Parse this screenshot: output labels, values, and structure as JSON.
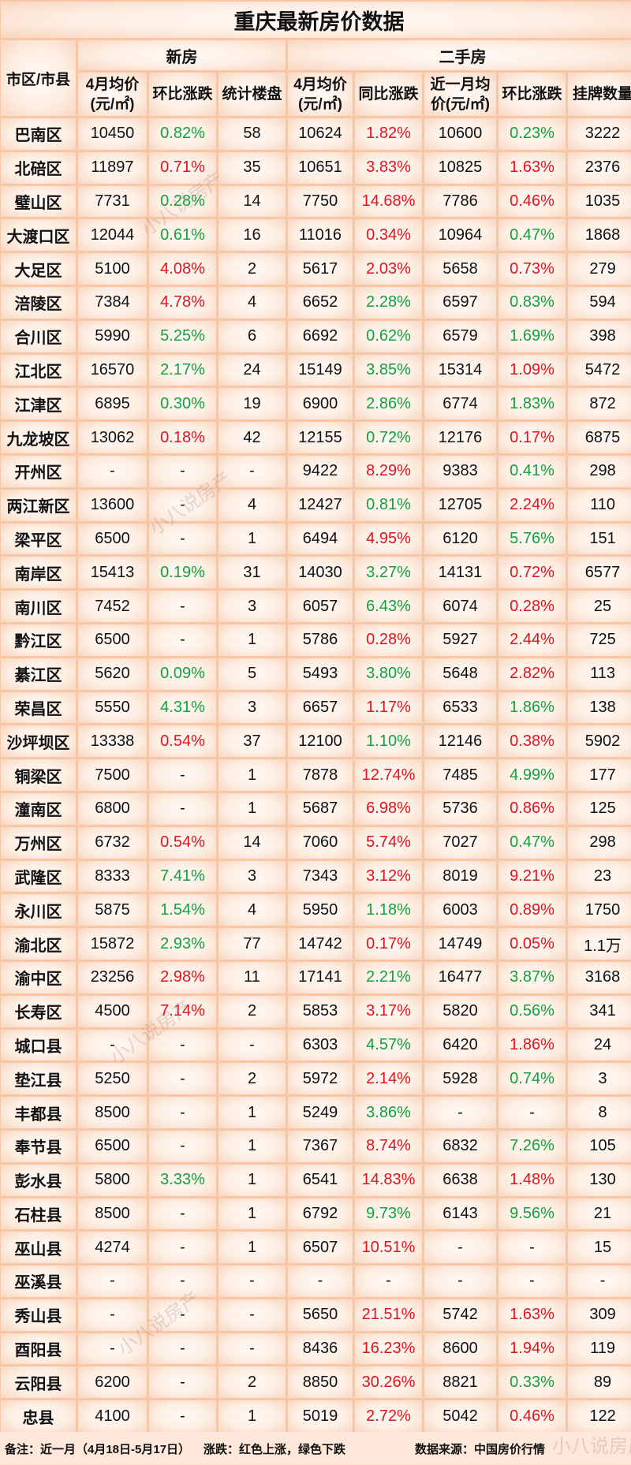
{
  "title": "重庆最新房价数据",
  "headers": {
    "city": "市区/市县",
    "new_group": "新房",
    "used_group": "二手房",
    "new_price": "4月均价(元/㎡)",
    "new_mom": "环比涨跌",
    "new_count": "统计楼盘",
    "used_price": "4月均价(元/㎡)",
    "used_yoy": "同比涨跌",
    "used_recent": "近一月均价(元/㎡)",
    "used_mom": "环比涨跌",
    "listings": "挂牌数量"
  },
  "colors": {
    "up": "#e0141e",
    "down": "#14a03c"
  },
  "rows": [
    [
      "巴南区",
      "10450",
      "0.82%",
      "down",
      "58",
      "10624",
      "1.82%",
      "up",
      "10600",
      "0.23%",
      "down",
      "3222"
    ],
    [
      "北碚区",
      "11897",
      "0.71%",
      "up",
      "35",
      "10651",
      "3.83%",
      "up",
      "10825",
      "1.63%",
      "up",
      "2376"
    ],
    [
      "璧山区",
      "7731",
      "0.28%",
      "down",
      "14",
      "7750",
      "14.68%",
      "up",
      "7786",
      "0.46%",
      "up",
      "1035"
    ],
    [
      "大渡口区",
      "12044",
      "0.61%",
      "down",
      "16",
      "11016",
      "0.34%",
      "up",
      "10964",
      "0.47%",
      "down",
      "1868"
    ],
    [
      "大足区",
      "5100",
      "4.08%",
      "up",
      "2",
      "5617",
      "2.03%",
      "up",
      "5658",
      "0.73%",
      "up",
      "279"
    ],
    [
      "涪陵区",
      "7384",
      "4.78%",
      "up",
      "4",
      "6652",
      "2.28%",
      "down",
      "6597",
      "0.83%",
      "down",
      "594"
    ],
    [
      "合川区",
      "5990",
      "5.25%",
      "down",
      "6",
      "6692",
      "0.62%",
      "down",
      "6579",
      "1.69%",
      "down",
      "398"
    ],
    [
      "江北区",
      "16570",
      "2.17%",
      "down",
      "24",
      "15149",
      "3.85%",
      "down",
      "15314",
      "1.09%",
      "up",
      "5472"
    ],
    [
      "江津区",
      "6895",
      "0.30%",
      "down",
      "19",
      "6900",
      "2.86%",
      "down",
      "6774",
      "1.83%",
      "down",
      "872"
    ],
    [
      "九龙坡区",
      "13062",
      "0.18%",
      "up",
      "42",
      "12155",
      "0.72%",
      "down",
      "12176",
      "0.17%",
      "up",
      "6875"
    ],
    [
      "开州区",
      "-",
      "-",
      "",
      "-",
      "9422",
      "8.29%",
      "up",
      "9383",
      "0.41%",
      "down",
      "298"
    ],
    [
      "两江新区",
      "13600",
      "-",
      "",
      "4",
      "12427",
      "0.81%",
      "down",
      "12705",
      "2.24%",
      "up",
      "110"
    ],
    [
      "梁平区",
      "6500",
      "-",
      "",
      "1",
      "6494",
      "4.95%",
      "up",
      "6120",
      "5.76%",
      "down",
      "151"
    ],
    [
      "南岸区",
      "15413",
      "0.19%",
      "down",
      "31",
      "14030",
      "3.27%",
      "down",
      "14131",
      "0.72%",
      "up",
      "6577"
    ],
    [
      "南川区",
      "7452",
      "-",
      "",
      "3",
      "6057",
      "6.43%",
      "down",
      "6074",
      "0.28%",
      "up",
      "25"
    ],
    [
      "黔江区",
      "6500",
      "-",
      "",
      "1",
      "5786",
      "0.28%",
      "up",
      "5927",
      "2.44%",
      "up",
      "725"
    ],
    [
      "綦江区",
      "5620",
      "0.09%",
      "down",
      "5",
      "5493",
      "3.80%",
      "down",
      "5648",
      "2.82%",
      "up",
      "113"
    ],
    [
      "荣昌区",
      "5550",
      "4.31%",
      "down",
      "3",
      "6657",
      "1.17%",
      "up",
      "6533",
      "1.86%",
      "down",
      "138"
    ],
    [
      "沙坪坝区",
      "13338",
      "0.54%",
      "up",
      "37",
      "12100",
      "1.10%",
      "down",
      "12146",
      "0.38%",
      "up",
      "5902"
    ],
    [
      "铜梁区",
      "7500",
      "-",
      "",
      "1",
      "7878",
      "12.74%",
      "up",
      "7485",
      "4.99%",
      "down",
      "177"
    ],
    [
      "潼南区",
      "6800",
      "-",
      "",
      "1",
      "5687",
      "6.98%",
      "up",
      "5736",
      "0.86%",
      "up",
      "125"
    ],
    [
      "万州区",
      "6732",
      "0.54%",
      "up",
      "14",
      "7060",
      "5.74%",
      "up",
      "7027",
      "0.47%",
      "down",
      "298"
    ],
    [
      "武隆区",
      "8333",
      "7.41%",
      "down",
      "3",
      "7343",
      "3.12%",
      "up",
      "8019",
      "9.21%",
      "up",
      "23"
    ],
    [
      "永川区",
      "5875",
      "1.54%",
      "down",
      "4",
      "5950",
      "1.18%",
      "down",
      "6003",
      "0.89%",
      "up",
      "1750"
    ],
    [
      "渝北区",
      "15872",
      "2.93%",
      "down",
      "77",
      "14742",
      "0.17%",
      "up",
      "14749",
      "0.05%",
      "up",
      "1.1万"
    ],
    [
      "渝中区",
      "23256",
      "2.98%",
      "up",
      "11",
      "17141",
      "2.21%",
      "down",
      "16477",
      "3.87%",
      "down",
      "3168"
    ],
    [
      "长寿区",
      "4500",
      "7.14%",
      "up",
      "2",
      "5853",
      "3.17%",
      "up",
      "5820",
      "0.56%",
      "down",
      "341"
    ],
    [
      "城口县",
      "-",
      "-",
      "",
      "-",
      "6303",
      "4.57%",
      "down",
      "6420",
      "1.86%",
      "up",
      "24"
    ],
    [
      "垫江县",
      "5250",
      "-",
      "",
      "2",
      "5972",
      "2.14%",
      "up",
      "5928",
      "0.74%",
      "down",
      "3"
    ],
    [
      "丰都县",
      "8500",
      "-",
      "",
      "1",
      "5249",
      "3.86%",
      "down",
      "-",
      "-",
      "",
      "8"
    ],
    [
      "奉节县",
      "6500",
      "-",
      "",
      "1",
      "7367",
      "8.74%",
      "up",
      "6832",
      "7.26%",
      "down",
      "105"
    ],
    [
      "彭水县",
      "5800",
      "3.33%",
      "down",
      "1",
      "6541",
      "14.83%",
      "up",
      "6638",
      "1.48%",
      "up",
      "130"
    ],
    [
      "石柱县",
      "8500",
      "-",
      "",
      "1",
      "6792",
      "9.73%",
      "down",
      "6143",
      "9.56%",
      "down",
      "21"
    ],
    [
      "巫山县",
      "4274",
      "-",
      "",
      "1",
      "6507",
      "10.51%",
      "up",
      "-",
      "-",
      "",
      "15"
    ],
    [
      "巫溪县",
      "-",
      "-",
      "",
      "-",
      "-",
      "-",
      "",
      "-",
      "-",
      "",
      "-"
    ],
    [
      "秀山县",
      "-",
      "-",
      "",
      "-",
      "5650",
      "21.51%",
      "up",
      "5742",
      "1.63%",
      "up",
      "309"
    ],
    [
      "酉阳县",
      "-",
      "-",
      "",
      "-",
      "8436",
      "16.23%",
      "up",
      "8600",
      "1.94%",
      "up",
      "119"
    ],
    [
      "云阳县",
      "6200",
      "-",
      "",
      "2",
      "8850",
      "30.26%",
      "up",
      "8821",
      "0.33%",
      "down",
      "89"
    ],
    [
      "忠县",
      "4100",
      "-",
      "",
      "1",
      "5019",
      "2.72%",
      "up",
      "5042",
      "0.46%",
      "up",
      "122"
    ]
  ],
  "footer": {
    "note": "备注：近一月（4月18日-5月17日）",
    "legend": "涨跌：红色上涨，绿色下跌",
    "source": "数据来源：中国房价行情"
  },
  "watermark": "小八说房产"
}
